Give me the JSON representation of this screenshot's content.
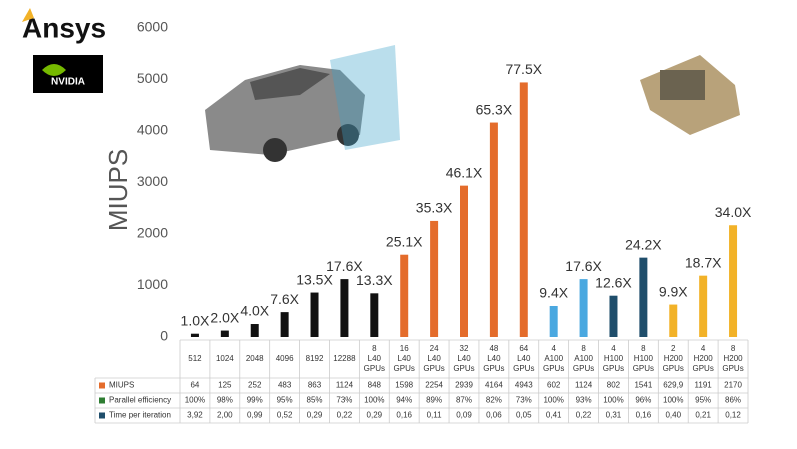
{
  "logos": {
    "ansys": "Ansys",
    "nvidia": "NVIDIA"
  },
  "chart_data": {
    "type": "bar",
    "ylabel": "MIUPS",
    "categories": [
      "512",
      "1024",
      "2048",
      "4096",
      "8192",
      "12288",
      "8 L40 GPUs",
      "16 L40 GPUs",
      "24 L40 GPUs",
      "32 L40 GPUs",
      "48 L40 GPUs",
      "64 L40 GPUs",
      "4 A100 GPUs",
      "8 A100 GPUs",
      "4 H100 GPUs",
      "8 H100 GPUs",
      "2 H200 GPUs",
      "4 H200 GPUs",
      "8 H200 GPUs"
    ],
    "values": [
      64,
      125,
      252,
      483,
      863,
      1124,
      848,
      1598,
      2254,
      2939,
      4164,
      4943,
      602,
      1124,
      802,
      1541,
      629.9,
      1191,
      2170
    ],
    "value_labels": [
      "64",
      "125",
      "252",
      "483",
      "863",
      "1124",
      "848",
      "1598",
      "2254",
      "2939",
      "4164",
      "4943",
      "602",
      "1124",
      "802",
      "1541",
      "629,9",
      "1191",
      "2170"
    ],
    "colors": [
      "#111111",
      "#111111",
      "#111111",
      "#111111",
      "#111111",
      "#111111",
      "#111111",
      "#e46c2b",
      "#e46c2b",
      "#e46c2b",
      "#e46c2b",
      "#e46c2b",
      "#4aa8e0",
      "#4aa8e0",
      "#1f4e6b",
      "#1f4e6b",
      "#f2b228",
      "#f2b228",
      "#f2b228"
    ],
    "speedup_labels": [
      "1.0X",
      "2.0X",
      "4.0X",
      "7.6X",
      "13.5X",
      "17.6X",
      "13.3X",
      "25.1X",
      "35.3X",
      "46.1X",
      "65.3X",
      "77.5X",
      "9.4X",
      "17.6X",
      "12.6X",
      "24.2X",
      "9.9X",
      "18.7X",
      "34.0X"
    ],
    "ylim": [
      0,
      6000
    ],
    "yticks": [
      0,
      1000,
      2000,
      3000,
      4000,
      5000,
      6000
    ],
    "grid": false,
    "table": {
      "rows": [
        {
          "name": "MIUPS",
          "color": "#e46c2b"
        },
        {
          "name": "Parallel efficiency",
          "color": "#2e7d32",
          "cells": [
            "100%",
            "98%",
            "99%",
            "95%",
            "85%",
            "73%",
            "100%",
            "94%",
            "89%",
            "87%",
            "82%",
            "73%",
            "100%",
            "93%",
            "100%",
            "96%",
            "100%",
            "95%",
            "86%"
          ]
        },
        {
          "name": "Time per iteration",
          "color": "#1f4e6b",
          "cells": [
            "3,92",
            "2,00",
            "0,99",
            "0,52",
            "0,29",
            "0,22",
            "0,29",
            "0,16",
            "0,11",
            "0,09",
            "0,06",
            "0,05",
            "0,41",
            "0,22",
            "0,31",
            "0,16",
            "0,40",
            "0,21",
            "0,12"
          ]
        }
      ]
    }
  }
}
